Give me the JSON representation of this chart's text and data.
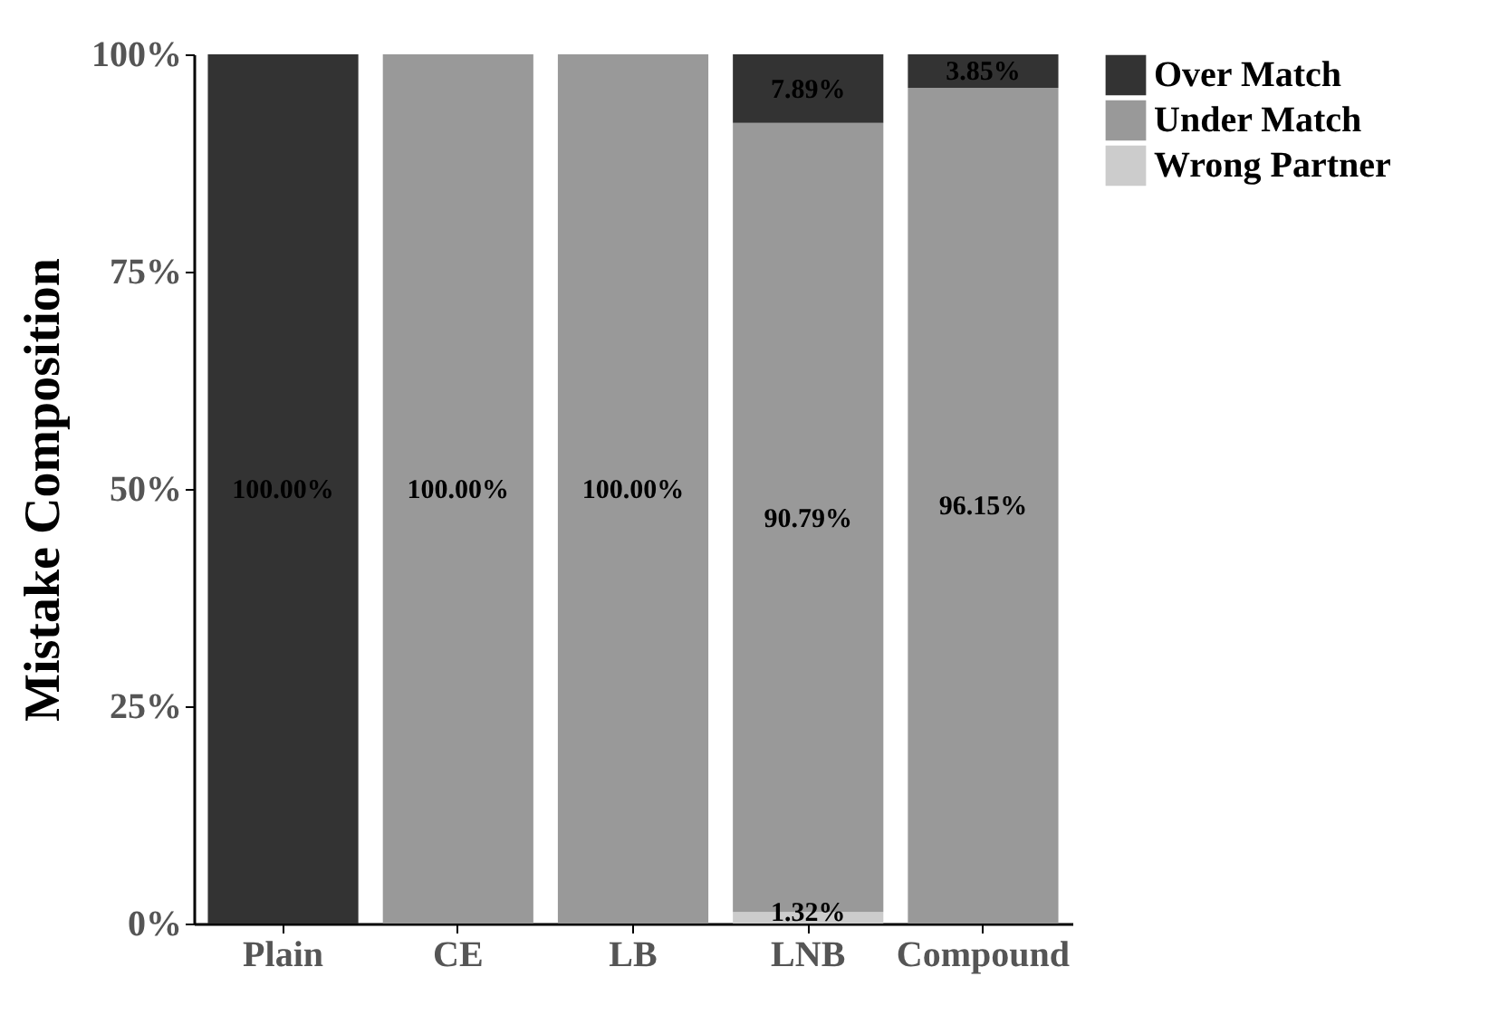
{
  "chart_data": {
    "type": "bar",
    "stacked": true,
    "ylabel": "Mistake Composition",
    "categories": [
      "Plain",
      "CE",
      "LB",
      "LNB",
      "Compound"
    ],
    "ylim": [
      0,
      100
    ],
    "yticks": [
      {
        "value": 0,
        "label": "0%"
      },
      {
        "value": 25,
        "label": "25%"
      },
      {
        "value": 50,
        "label": "50%"
      },
      {
        "value": 75,
        "label": "75%"
      },
      {
        "value": 100,
        "label": "100%"
      }
    ],
    "grid": false,
    "legend": "right",
    "series": [
      {
        "name": "Wrong Partner",
        "color": "#cccccc",
        "values": [
          0,
          0,
          0,
          1.32,
          0
        ],
        "value_labels": [
          null,
          null,
          null,
          "1.32%",
          null
        ]
      },
      {
        "name": "Under Match",
        "color": "#999999",
        "values": [
          0,
          100,
          100,
          90.79,
          96.15
        ],
        "value_labels": [
          null,
          "100.00%",
          "100.00%",
          "90.79%",
          "96.15%"
        ]
      },
      {
        "name": "Over Match",
        "color": "#333333",
        "values": [
          100,
          0,
          0,
          7.89,
          3.85
        ],
        "value_labels": [
          "100.00%",
          null,
          null,
          "7.89%",
          "3.85%"
        ]
      }
    ]
  }
}
